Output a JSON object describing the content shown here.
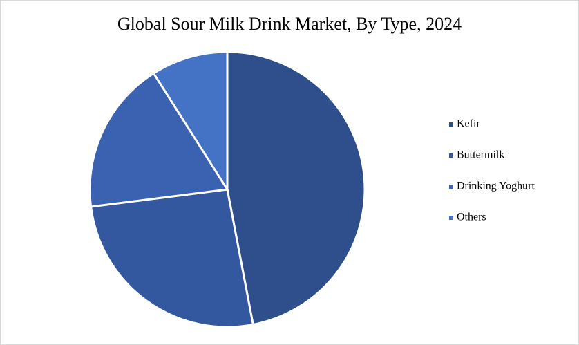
{
  "chart_data": {
    "type": "pie",
    "title": "Global Sour Milk Drink Market, By Type, 2024",
    "categories": [
      "Kefir",
      "Buttermilk",
      "Drinking Yoghurt",
      "Others"
    ],
    "values": [
      47,
      26,
      18,
      9
    ],
    "colors": [
      "#2f4f8c",
      "#3358a0",
      "#3a62b0",
      "#4472c4"
    ],
    "legend": "right"
  }
}
